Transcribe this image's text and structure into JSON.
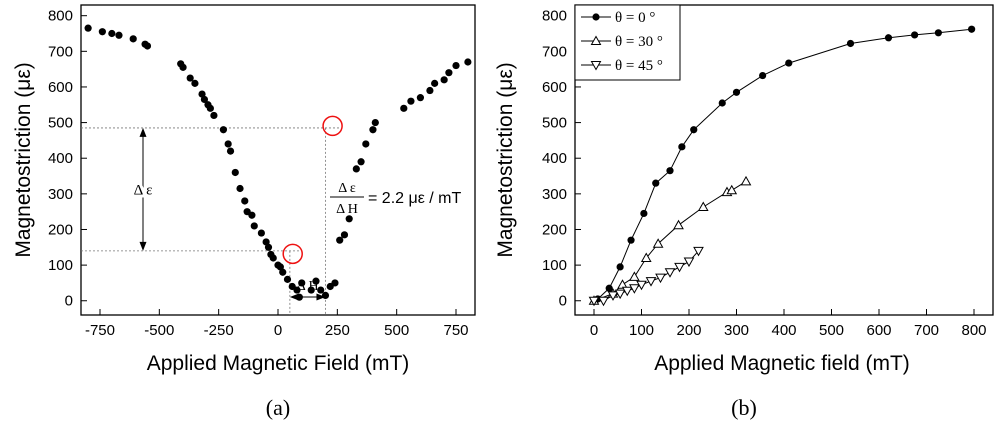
{
  "chart_data": [
    {
      "type": "scatter",
      "caption": "(a)",
      "xlabel": "Applied Magnetic Field (mT)",
      "ylabel": "Magnetostriction (με)",
      "xlim": [
        -830,
        830
      ],
      "ylim": [
        -40,
        830
      ],
      "xticks": [
        -750,
        -500,
        -250,
        0,
        250,
        500,
        750
      ],
      "yticks": [
        0,
        100,
        200,
        300,
        400,
        500,
        600,
        700,
        800
      ],
      "grid": false,
      "series": [
        {
          "marker": "filled-circle",
          "x": [
            -800,
            -740,
            -700,
            -670,
            -610,
            -560,
            -550,
            -410,
            -400,
            -370,
            -350,
            -320,
            -310,
            -295,
            -285,
            -270,
            -230,
            -210,
            -200,
            -180,
            -160,
            -140,
            -130,
            -110,
            -100,
            -70,
            -50,
            -40,
            -30,
            -20,
            0,
            10,
            20,
            40,
            60,
            80,
            90,
            100,
            140,
            160,
            180,
            200,
            220,
            240,
            260,
            280,
            300,
            330,
            350,
            370,
            400,
            410,
            530,
            560,
            600,
            640,
            660,
            700,
            720,
            750,
            800
          ],
          "y": [
            765,
            755,
            750,
            745,
            735,
            720,
            715,
            665,
            655,
            625,
            610,
            580,
            565,
            550,
            540,
            520,
            480,
            440,
            420,
            360,
            315,
            280,
            250,
            240,
            210,
            190,
            165,
            150,
            130,
            120,
            100,
            95,
            80,
            60,
            40,
            30,
            10,
            50,
            30,
            55,
            30,
            15,
            40,
            50,
            170,
            185,
            230,
            370,
            390,
            440,
            480,
            500,
            540,
            560,
            570,
            590,
            610,
            620,
            640,
            660,
            670
          ]
        }
      ],
      "annotations": {
        "delta_eps": "Δ ε",
        "delta_h": "Δ H",
        "slope_num": "Δ ε",
        "slope_den": "Δ H",
        "slope_value": "= 2.2 με / mT",
        "eps_upper": 485,
        "eps_lower": 140,
        "h_left": 50,
        "h_right": 200
      }
    },
    {
      "type": "line",
      "caption": "(b)",
      "xlabel": "Applied Magnetic field (mT)",
      "ylabel": "Magnetostriction (με)",
      "xlim": [
        -40,
        840
      ],
      "ylim": [
        -40,
        830
      ],
      "xticks": [
        0,
        100,
        200,
        300,
        400,
        500,
        600,
        700,
        800
      ],
      "yticks": [
        0,
        100,
        200,
        300,
        400,
        500,
        600,
        700,
        800
      ],
      "grid": false,
      "legend": "top-left",
      "series": [
        {
          "name": "θ = 0 °",
          "marker": "filled-circle",
          "x": [
            8,
            32,
            55,
            78,
            105,
            130,
            160,
            185,
            210,
            270,
            300,
            355,
            410,
            540,
            620,
            675,
            725,
            795
          ],
          "y": [
            5,
            35,
            95,
            170,
            245,
            330,
            365,
            432,
            480,
            555,
            585,
            632,
            667,
            722,
            738,
            746,
            752,
            762
          ],
          "color": "#000000"
        },
        {
          "name": "θ = 30 °",
          "marker": "open-triangle-up",
          "x": [
            0,
            40,
            60,
            85,
            110,
            135,
            178,
            230,
            280,
            290,
            320
          ],
          "y": [
            0,
            20,
            45,
            67,
            120,
            160,
            212,
            263,
            305,
            310,
            335
          ],
          "color": "#000000"
        },
        {
          "name": "θ = 45 °",
          "marker": "open-triangle-down",
          "x": [
            0,
            20,
            40,
            55,
            70,
            85,
            100,
            120,
            140,
            160,
            180,
            200,
            220
          ],
          "y": [
            0,
            0,
            15,
            20,
            28,
            35,
            45,
            55,
            65,
            80,
            95,
            110,
            140
          ],
          "color": "#000000"
        }
      ]
    }
  ]
}
